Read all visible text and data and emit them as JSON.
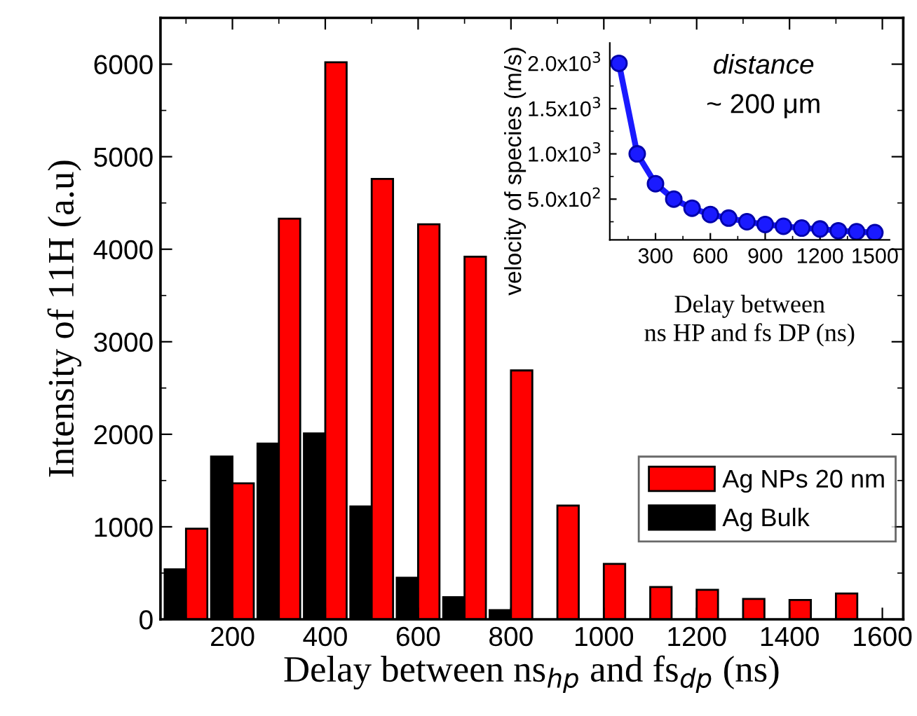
{
  "chart_data": [
    {
      "type": "bar",
      "xlabel": "Delay between ns$_{hp}$ and fs$_{dp}$ (ns)",
      "ylabel": "Intensity of 11H (a.u)",
      "x": [
        100,
        200,
        300,
        400,
        500,
        600,
        700,
        800,
        900,
        1000,
        1100,
        1200,
        1300,
        1400,
        1500
      ],
      "series": [
        {
          "name": "Ag Bulk",
          "color": "#000000",
          "values": [
            540,
            1760,
            1900,
            2010,
            1220,
            450,
            240,
            100,
            null,
            null,
            null,
            null,
            null,
            null,
            null
          ]
        },
        {
          "name": "Ag NPs 20 nm",
          "color": "#ff0000",
          "values": [
            980,
            1470,
            4330,
            6020,
            4760,
            4270,
            3920,
            2690,
            1230,
            600,
            350,
            320,
            220,
            210,
            280
          ]
        }
      ],
      "xlim": [
        45,
        1645
      ],
      "xticks": [
        200,
        400,
        600,
        800,
        1000,
        1200,
        1400,
        1600
      ],
      "ylim": [
        0,
        6500
      ],
      "yticks": [
        0,
        1000,
        2000,
        3000,
        4000,
        5000,
        6000
      ],
      "grid": false,
      "legend": "right"
    },
    {
      "type": "line",
      "xlabel": "Delay between\nns HP and fs DP (ns)",
      "ylabel": "velocity of species (m/s)",
      "annotations": [
        "distance",
        "~ 200 μm"
      ],
      "x": [
        100,
        200,
        300,
        400,
        500,
        600,
        700,
        800,
        900,
        1000,
        1100,
        1200,
        1300,
        1400,
        1500
      ],
      "series": [
        {
          "color": "#1a1aff",
          "values": [
            2000,
            1000,
            670,
            500,
            400,
            330,
            290,
            250,
            220,
            200,
            180,
            170,
            150,
            140,
            130
          ]
        }
      ],
      "xlim": [
        50,
        1580
      ],
      "xticks": [
        300,
        600,
        900,
        1200,
        1500
      ],
      "ylim": [
        50,
        2225
      ],
      "yticks": [
        {
          "value": 500,
          "label": "5.0x10$^{2}$"
        },
        {
          "value": 1000,
          "label": "1.0x10$^{3}$"
        },
        {
          "value": 1500,
          "label": "1.5x10$^{3}$"
        },
        {
          "value": 2000,
          "label": "2.0x10$^{3}$"
        }
      ],
      "marker": "circle",
      "line_style": "solid",
      "grid": false
    }
  ]
}
